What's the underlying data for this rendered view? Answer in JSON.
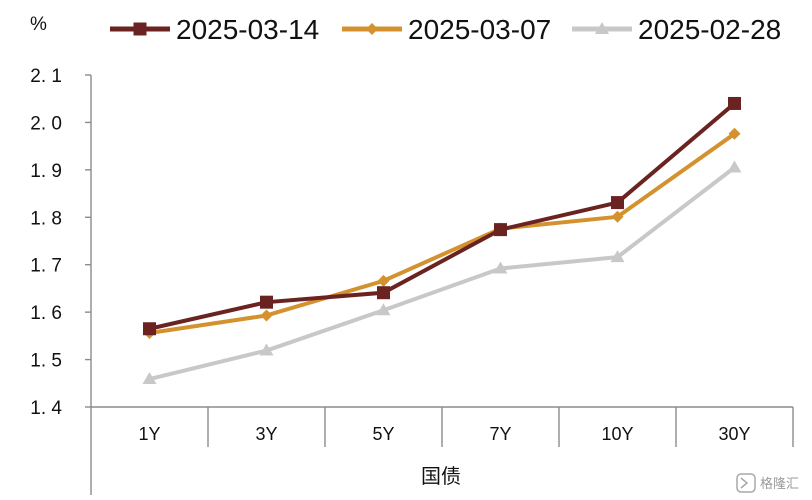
{
  "chart_data": {
    "type": "line",
    "unit_label": "%",
    "xlabel": "国债",
    "categories": [
      "1Y",
      "3Y",
      "5Y",
      "7Y",
      "10Y",
      "30Y"
    ],
    "ylim": [
      1.4,
      2.1
    ],
    "yticks": [
      1.4,
      1.5,
      1.6,
      1.7,
      1.8,
      1.9,
      2.0,
      2.1
    ],
    "ytick_labels": [
      "1. 4",
      "1. 5",
      "1. 6",
      "1. 7",
      "1. 8",
      "1. 9",
      "2. 0",
      "2. 1"
    ],
    "grid": false,
    "legend_position": "top",
    "series": [
      {
        "name": "2025-03-14",
        "color": "#6b2322",
        "marker": "square",
        "values": [
          1.565,
          1.621,
          1.641,
          1.774,
          1.831,
          2.04
        ]
      },
      {
        "name": "2025-03-07",
        "color": "#d4922f",
        "marker": "diamond",
        "values": [
          1.556,
          1.593,
          1.666,
          1.776,
          1.801,
          1.976
        ]
      },
      {
        "name": "2025-02-28",
        "color": "#c8c8c8",
        "marker": "triangle",
        "values": [
          1.459,
          1.519,
          1.604,
          1.692,
          1.716,
          1.905
        ]
      }
    ]
  },
  "watermark": {
    "icon": "gelonghui-logo-icon",
    "text": "格隆汇"
  }
}
